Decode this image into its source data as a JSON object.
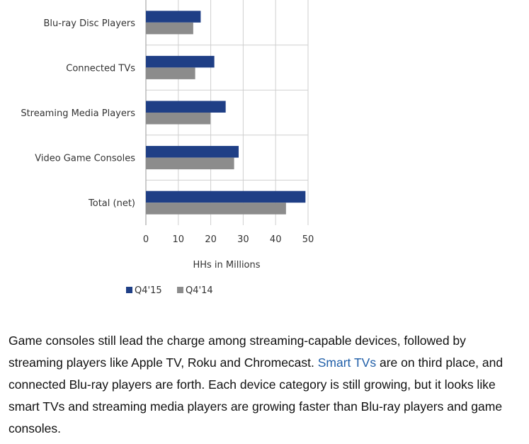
{
  "chart_data": {
    "type": "bar",
    "orientation": "horizontal",
    "categories": [
      "Blu-ray Disc Players",
      "Connected TVs",
      "Streaming Media Players",
      "Video Game Consoles",
      "Total (net)"
    ],
    "series": [
      {
        "name": "Q4'15",
        "values": [
          16.9,
          21.1,
          24.6,
          28.6,
          49.2
        ],
        "color": "#1f3f86"
      },
      {
        "name": "Q4'14",
        "values": [
          14.6,
          15.2,
          19.9,
          27.2,
          43.2
        ],
        "color": "#8c8c8c"
      }
    ],
    "xlabel": "HHs in Millions",
    "xlim": [
      0,
      50
    ],
    "xticks": [
      0,
      10,
      20,
      30,
      40,
      50
    ],
    "grid": true,
    "legend": "bottom"
  },
  "caption": {
    "before_link": "Game consoles still lead the charge among streaming-capable devices, followed by streaming players like Apple TV, Roku and Chromecast. ",
    "link_text": "Smart TVs",
    "after_link": " are on third place, and connected Blu-ray players are forth. Each device category is still growing, but it looks like smart TVs and streaming media players are growing faster than Blu-ray players and game consoles."
  }
}
